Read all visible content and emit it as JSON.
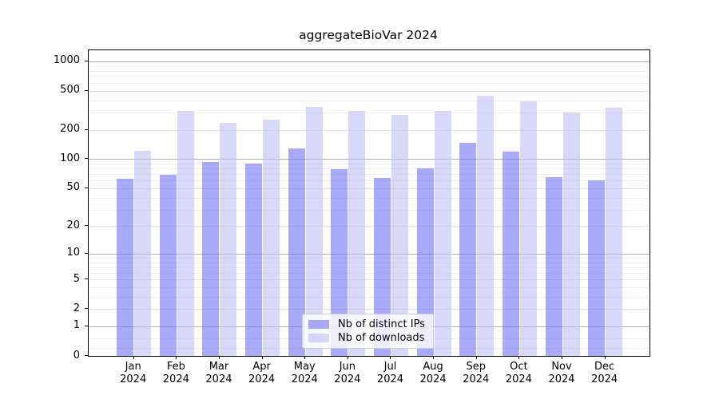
{
  "chart_data": {
    "type": "bar",
    "title": "aggregateBioVar 2024",
    "year": "2024",
    "categories": [
      "Jan",
      "Feb",
      "Mar",
      "Apr",
      "May",
      "Jun",
      "Jul",
      "Aug",
      "Sep",
      "Oct",
      "Nov",
      "Dec"
    ],
    "series": [
      {
        "name": "Nb of distinct IPs",
        "values": [
          63,
          69,
          93,
          90,
          129,
          79,
          64,
          81,
          146,
          120,
          65,
          60
        ]
      },
      {
        "name": "Nb of downloads",
        "values": [
          122,
          315,
          237,
          255,
          341,
          314,
          286,
          315,
          446,
          390,
          300,
          334
        ]
      }
    ],
    "xlabel": "",
    "ylabel": "",
    "y_scale": "log10(value+1)",
    "y_ticks": [
      0,
      1,
      2,
      5,
      10,
      20,
      50,
      100,
      200,
      500,
      1000
    ],
    "y_axis_max": 1300,
    "grid": true,
    "legend_position": "bottom-center"
  },
  "colors": {
    "ips_bar": "rgba(113,113,246,0.6)",
    "downloads_bar": "rgba(190,190,244,0.6)",
    "ips_on_white": "#aaaaf8",
    "downloads_on_white": "#d8d8f8",
    "grid_major": "#b0b0b0",
    "grid_mid": "#e2e2e2",
    "grid_minor": "#eeeeee",
    "axis": "#000000",
    "background": "#ffffff"
  }
}
